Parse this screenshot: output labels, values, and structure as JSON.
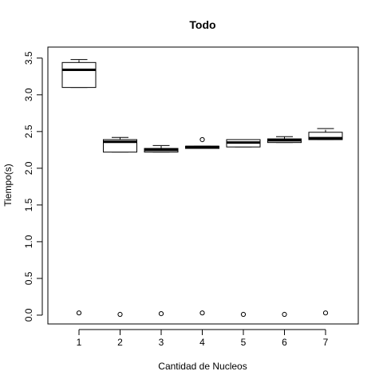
{
  "chart_data": {
    "type": "box",
    "title": "Todo",
    "xlabel": "Cantidad de Nucleos",
    "ylabel": "Tiempo(s)",
    "categories": [
      "1",
      "2",
      "3",
      "4",
      "5",
      "6",
      "7"
    ],
    "ylim": [
      -0.12,
      3.65
    ],
    "yticks": [
      "0.0",
      "0.5",
      "1.0",
      "1.5",
      "2.0",
      "2.5",
      "3.0",
      "3.5"
    ],
    "grid": false,
    "legend": "none",
    "boxes": [
      {
        "category": "1",
        "whisker_low": 3.1,
        "q1": 3.1,
        "median": 3.34,
        "q3": 3.44,
        "whisker_high": 3.48,
        "outliers": [
          0.03
        ]
      },
      {
        "category": "2",
        "whisker_low": 2.22,
        "q1": 2.22,
        "median": 2.36,
        "q3": 2.39,
        "whisker_high": 2.42,
        "outliers": [
          0.01
        ]
      },
      {
        "category": "3",
        "whisker_low": 2.22,
        "q1": 2.22,
        "median": 2.25,
        "q3": 2.27,
        "whisker_high": 2.31,
        "outliers": [
          0.02
        ]
      },
      {
        "category": "4",
        "whisker_low": 2.27,
        "q1": 2.27,
        "median": 2.29,
        "q3": 2.3,
        "whisker_high": 2.3,
        "outliers": [
          0.03,
          2.39
        ]
      },
      {
        "category": "5",
        "whisker_low": 2.29,
        "q1": 2.29,
        "median": 2.35,
        "q3": 2.39,
        "whisker_high": 2.39,
        "outliers": [
          0.01
        ]
      },
      {
        "category": "6",
        "whisker_low": 2.35,
        "q1": 2.35,
        "median": 2.38,
        "q3": 2.4,
        "whisker_high": 2.43,
        "outliers": [
          0.01
        ]
      },
      {
        "category": "7",
        "whisker_low": 2.39,
        "q1": 2.39,
        "median": 2.41,
        "q3": 2.49,
        "whisker_high": 2.54,
        "outliers": [
          0.03
        ]
      }
    ]
  }
}
